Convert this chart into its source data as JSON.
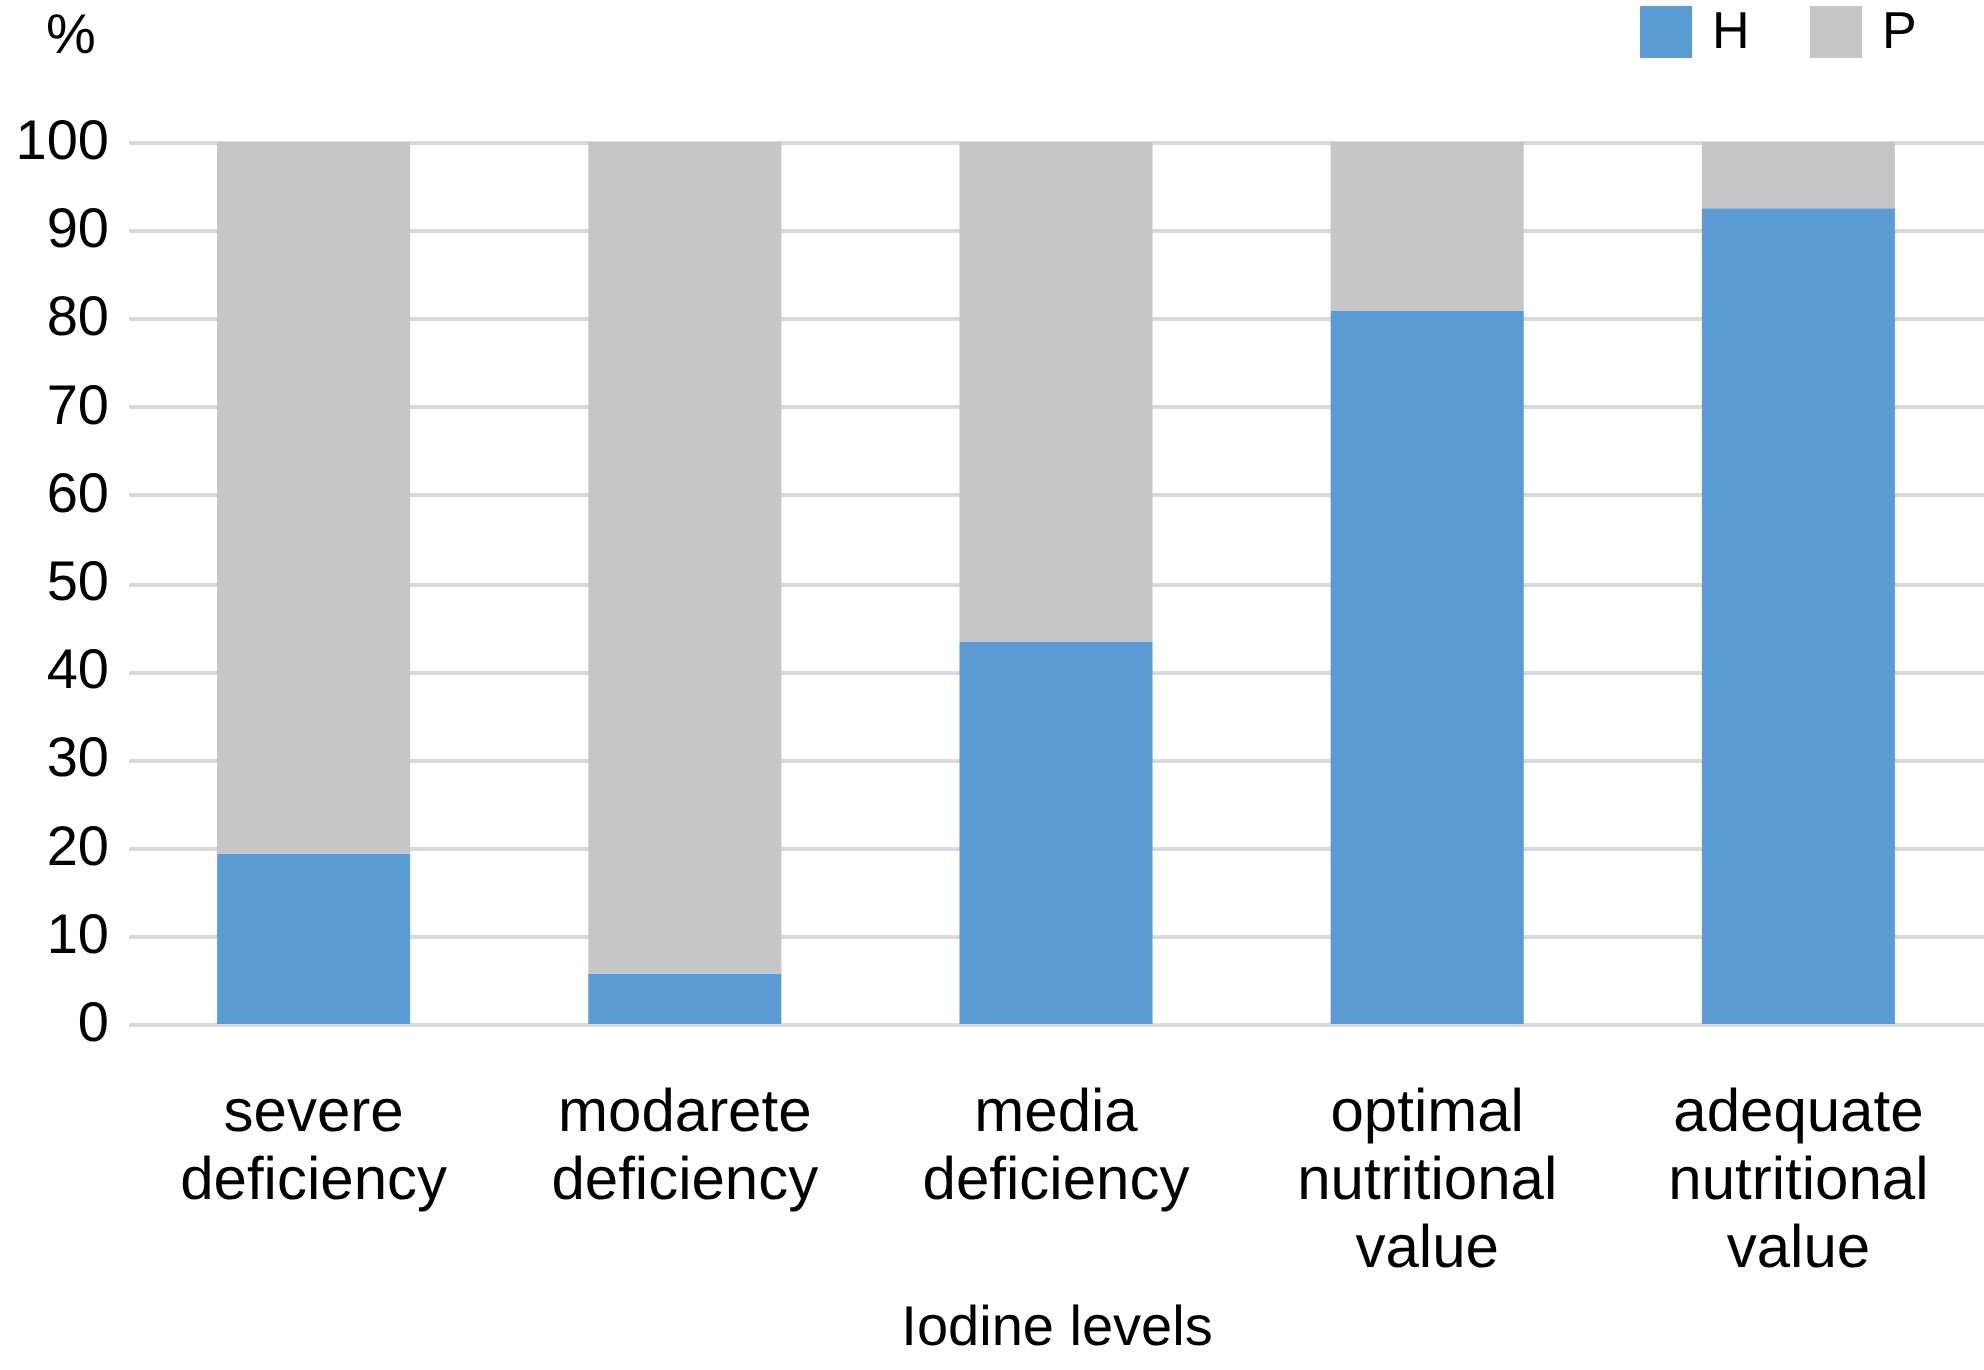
{
  "chart_data": {
    "type": "bar",
    "stacked": true,
    "categories": [
      "severe deficiency",
      "modarete deficiency",
      "media deficiency",
      "optimal nutritional value",
      "adequate nutritional value"
    ],
    "xlabel": "Iodine levels",
    "ylabel": "%",
    "series": [
      {
        "name": "H",
        "color": "#5b9bd5",
        "values": [
          19.3,
          5.7,
          43.3,
          80.9,
          92.5
        ]
      },
      {
        "name": "P",
        "color": "#c6c6c6",
        "values": [
          80.7,
          94.3,
          56.7,
          19.1,
          7.5
        ]
      }
    ],
    "ylim": [
      0,
      100
    ],
    "yticks": [
      0,
      10,
      20,
      30,
      40,
      50,
      60,
      70,
      80,
      90,
      100
    ],
    "grid": "y",
    "legend": "top right"
  }
}
